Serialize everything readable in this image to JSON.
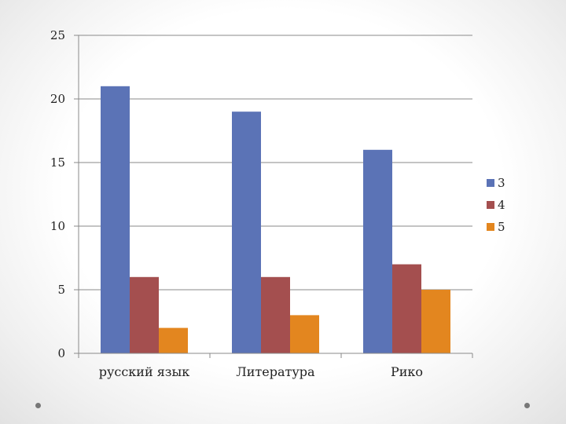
{
  "chart_data": {
    "type": "bar",
    "categories": [
      "русский язык",
      "Литература",
      "Рико"
    ],
    "series": [
      {
        "name": "3",
        "values": [
          21,
          19,
          16
        ],
        "color": "#5B73B6"
      },
      {
        "name": "4",
        "values": [
          6,
          6,
          7
        ],
        "color": "#A44F4F"
      },
      {
        "name": "5",
        "values": [
          2,
          3,
          5
        ],
        "color": "#E3861F"
      }
    ],
    "ylim": [
      0,
      25
    ],
    "yticks": [
      0,
      5,
      10,
      15,
      20,
      25
    ],
    "grid": true,
    "legend": "right",
    "title": "",
    "xlabel": "",
    "ylabel": ""
  },
  "decorations": {
    "corner_dot_icons": [
      "bullet-dot-icon",
      "bullet-dot-icon"
    ]
  }
}
